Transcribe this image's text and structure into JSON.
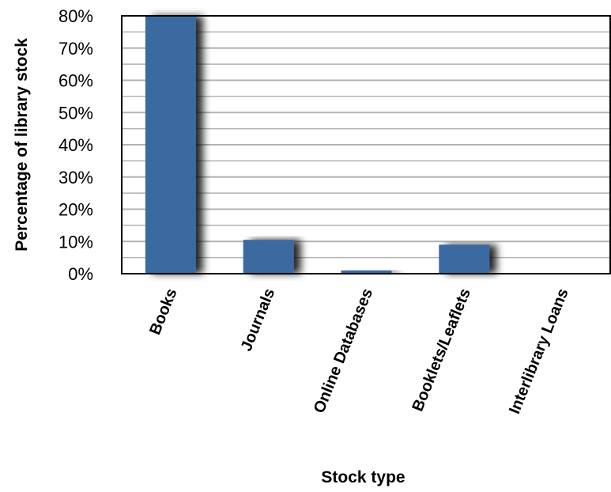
{
  "chart_data": {
    "type": "bar",
    "categories": [
      "Books",
      "Journals",
      "Online Databases",
      "Booklets/Leaflets",
      "Interlibrary Loans"
    ],
    "values": [
      80,
      10.5,
      1,
      9,
      0
    ],
    "xlabel": "Stock type",
    "ylabel": "Percentage of library stock",
    "ylim": [
      0,
      80
    ],
    "yticks": [
      "0%",
      "10%",
      "20%",
      "30%",
      "40%",
      "50%",
      "60%",
      "70%",
      "80%"
    ],
    "grid": true,
    "legend": "none"
  },
  "colors": {
    "bar": "#3b6aa0",
    "grid": "#b3b3b3",
    "axis": "#000000",
    "shadow": "#000000"
  }
}
